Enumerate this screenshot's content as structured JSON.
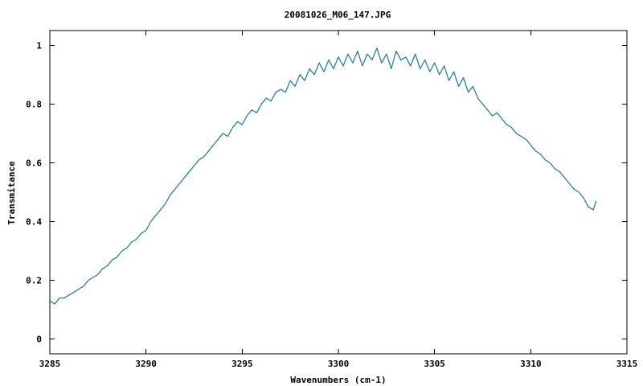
{
  "chart_data": {
    "type": "line",
    "title": "20081026_M06_147.JPG",
    "xlabel": "Wavenumbers (cm-1)",
    "ylabel": "Transmitance",
    "xlim": [
      3285,
      3315
    ],
    "ylim": [
      -0.05,
      1.05
    ],
    "x_ticks": [
      "3285",
      "3290",
      "3295",
      "3300",
      "3305",
      "3310",
      "3315"
    ],
    "y_ticks": [
      "0",
      "0.2",
      "0.4",
      "0.6",
      "0.8",
      "1"
    ],
    "x_tick_values": [
      3285,
      3290,
      3295,
      3300,
      3305,
      3310,
      3315
    ],
    "y_tick_values": [
      0,
      0.2,
      0.4,
      0.6,
      0.8,
      1
    ],
    "grid": false,
    "legend": "none",
    "series": [
      {
        "color": "#2a7fa0",
        "x": [
          3285.0,
          3285.25,
          3285.5,
          3285.75,
          3286.0,
          3286.25,
          3286.5,
          3286.75,
          3287.0,
          3287.25,
          3287.5,
          3287.75,
          3288.0,
          3288.25,
          3288.5,
          3288.75,
          3289.0,
          3289.25,
          3289.5,
          3289.75,
          3290.0,
          3290.25,
          3290.5,
          3290.75,
          3291.0,
          3291.25,
          3291.5,
          3291.75,
          3292.0,
          3292.25,
          3292.5,
          3292.75,
          3293.0,
          3293.25,
          3293.5,
          3293.75,
          3294.0,
          3294.25,
          3294.5,
          3294.75,
          3295.0,
          3295.25,
          3295.5,
          3295.75,
          3296.0,
          3296.25,
          3296.5,
          3296.75,
          3297.0,
          3297.25,
          3297.5,
          3297.75,
          3298.0,
          3298.25,
          3298.5,
          3298.75,
          3299.0,
          3299.25,
          3299.5,
          3299.75,
          3300.0,
          3300.25,
          3300.5,
          3300.75,
          3301.0,
          3301.25,
          3301.5,
          3301.75,
          3302.0,
          3302.25,
          3302.5,
          3302.75,
          3303.0,
          3303.25,
          3303.5,
          3303.75,
          3304.0,
          3304.25,
          3304.5,
          3304.75,
          3305.0,
          3305.25,
          3305.5,
          3305.75,
          3306.0,
          3306.25,
          3306.5,
          3306.75,
          3307.0,
          3307.25,
          3307.5,
          3307.75,
          3308.0,
          3308.25,
          3308.5,
          3308.75,
          3309.0,
          3309.25,
          3309.5,
          3309.75,
          3310.0,
          3310.25,
          3310.5,
          3310.75,
          3311.0,
          3311.25,
          3311.5,
          3311.75,
          3312.0,
          3312.25,
          3312.5,
          3312.75,
          3313.0,
          3313.25,
          3313.4
        ],
        "y": [
          0.13,
          0.12,
          0.14,
          0.14,
          0.15,
          0.16,
          0.17,
          0.18,
          0.2,
          0.21,
          0.22,
          0.24,
          0.25,
          0.27,
          0.28,
          0.3,
          0.31,
          0.33,
          0.34,
          0.36,
          0.37,
          0.4,
          0.42,
          0.44,
          0.46,
          0.49,
          0.51,
          0.53,
          0.55,
          0.57,
          0.59,
          0.61,
          0.62,
          0.64,
          0.66,
          0.68,
          0.7,
          0.69,
          0.72,
          0.74,
          0.73,
          0.76,
          0.78,
          0.77,
          0.8,
          0.82,
          0.81,
          0.84,
          0.85,
          0.84,
          0.88,
          0.86,
          0.9,
          0.88,
          0.92,
          0.9,
          0.94,
          0.91,
          0.95,
          0.92,
          0.96,
          0.93,
          0.97,
          0.94,
          0.98,
          0.93,
          0.97,
          0.95,
          0.99,
          0.94,
          0.97,
          0.92,
          0.98,
          0.95,
          0.96,
          0.93,
          0.97,
          0.92,
          0.95,
          0.91,
          0.94,
          0.9,
          0.93,
          0.88,
          0.91,
          0.86,
          0.89,
          0.84,
          0.86,
          0.82,
          0.8,
          0.78,
          0.76,
          0.77,
          0.75,
          0.73,
          0.72,
          0.7,
          0.69,
          0.68,
          0.66,
          0.64,
          0.63,
          0.61,
          0.6,
          0.58,
          0.57,
          0.55,
          0.53,
          0.51,
          0.5,
          0.48,
          0.45,
          0.44,
          0.47
        ]
      }
    ]
  }
}
